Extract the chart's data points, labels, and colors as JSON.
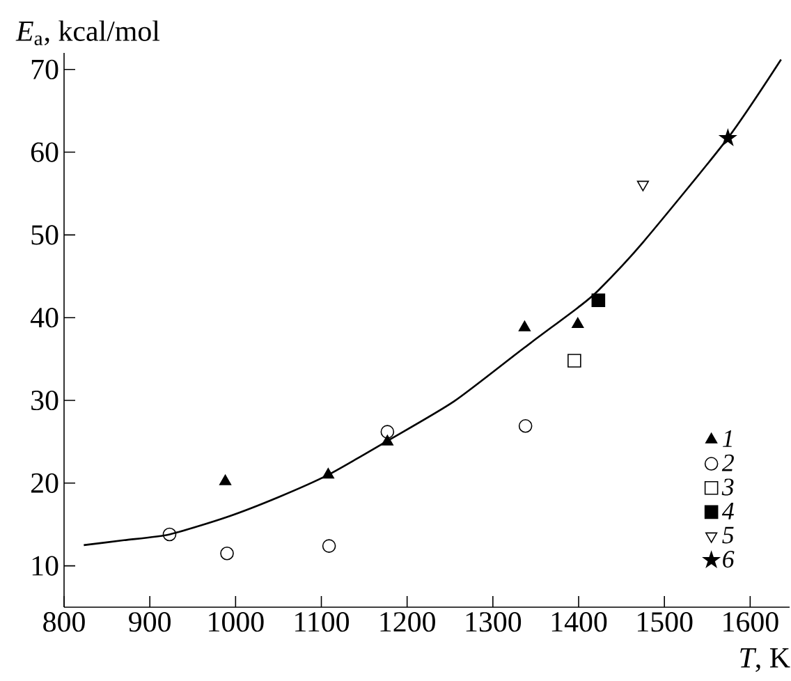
{
  "chart_data": {
    "type": "scatter",
    "xlabel": "*T*, K",
    "ylabel": "*E*$_{a}$, kcal/mol",
    "xlim": [
      800,
      1646
    ],
    "ylim": [
      5,
      72
    ],
    "xticks": [
      800,
      900,
      1000,
      1100,
      1200,
      1300,
      1400,
      1500,
      1600
    ],
    "yticks": [
      10,
      20,
      30,
      40,
      50,
      60,
      70
    ],
    "grid": false,
    "legend": "bottom right",
    "series": [
      {
        "name": "1",
        "color": "#000000",
        "marker": "triangle",
        "x": [
          988,
          1108,
          1177,
          1337,
          1399
        ],
        "values": [
          20.2,
          21.0,
          25.0,
          38.8,
          39.2
        ]
      },
      {
        "name": "2",
        "color": "#000000",
        "marker": "circle",
        "x": [
          923,
          990,
          1109,
          1177,
          1338
        ],
        "values": [
          13.8,
          11.5,
          12.4,
          26.2,
          26.9
        ]
      },
      {
        "name": "3",
        "color": "#000000",
        "marker": "square",
        "x": [
          1395
        ],
        "values": [
          34.8
        ]
      },
      {
        "name": "4",
        "color": "#000000",
        "marker": "square",
        "x": [
          1423
        ],
        "values": [
          42.1
        ]
      },
      {
        "name": "5",
        "color": "#000000",
        "marker": "triangle",
        "x": [
          1475
        ],
        "values": [
          56.1
        ]
      },
      {
        "name": "6",
        "color": "#000000",
        "marker": "star",
        "x": [
          1574
        ],
        "values": [
          61.7
        ]
      },
      {
        "type": "line",
        "color": "#000000",
        "marker": "none",
        "line_style": "solid",
        "x": [
          823,
          870,
          923,
          990,
          1050,
          1108,
          1177,
          1255,
          1337,
          1399,
          1423,
          1475,
          1574,
          1636
        ],
        "values": [
          12.5,
          13.1,
          13.8,
          15.9,
          18.3,
          21.0,
          25.1,
          29.9,
          36.4,
          41.2,
          43.3,
          49.1,
          61.7,
          71.2
        ]
      }
    ]
  }
}
